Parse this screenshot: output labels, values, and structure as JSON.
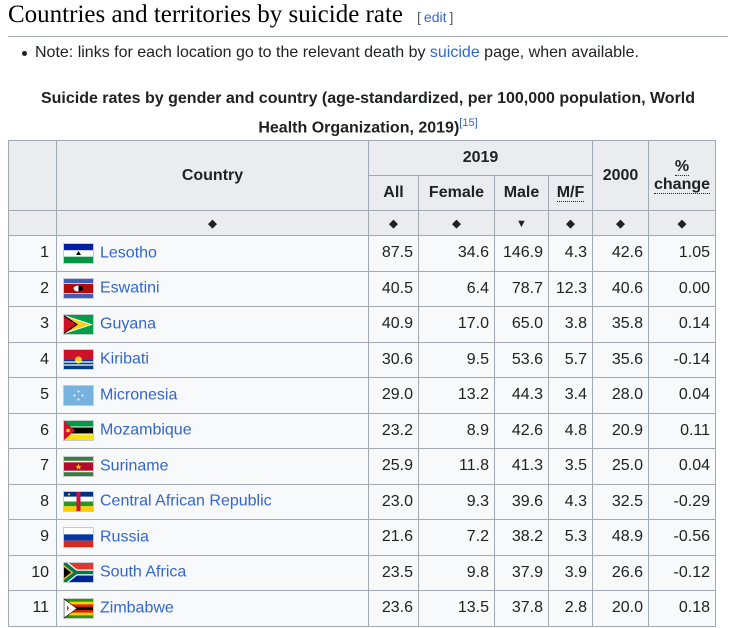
{
  "heading": {
    "title": "Countries and territories by suicide rate",
    "edit_label": "edit"
  },
  "note": {
    "prefix": "Note: links for each location go to the relevant death by ",
    "link": "suicide",
    "suffix": " page, when available."
  },
  "caption": {
    "line1": "Suicide rates by gender and country (age-standardized, per 100,000 population, World",
    "line2": "Health Organization, 2019)",
    "ref": "[15]"
  },
  "table": {
    "headers": {
      "country": "Country",
      "year_group": "2019",
      "all": "All",
      "female": "Female",
      "male": "Male",
      "mf": "M/F",
      "y2000": "2000",
      "change_pct": "%",
      "change_word": "change"
    },
    "sort_icons": {
      "both": "◆",
      "descending": "▼"
    },
    "rows": [
      {
        "rank": "1",
        "country": "Lesotho",
        "flag": "lesotho",
        "all": "87.5",
        "female": "34.6",
        "male": "146.9",
        "mf": "4.3",
        "y2000": "42.6",
        "change": "1.05"
      },
      {
        "rank": "2",
        "country": "Eswatini",
        "flag": "eswatini",
        "all": "40.5",
        "female": "6.4",
        "male": "78.7",
        "mf": "12.3",
        "y2000": "40.6",
        "change": "0.00"
      },
      {
        "rank": "3",
        "country": "Guyana",
        "flag": "guyana",
        "all": "40.9",
        "female": "17.0",
        "male": "65.0",
        "mf": "3.8",
        "y2000": "35.8",
        "change": "0.14"
      },
      {
        "rank": "4",
        "country": "Kiribati",
        "flag": "kiribati",
        "all": "30.6",
        "female": "9.5",
        "male": "53.6",
        "mf": "5.7",
        "y2000": "35.6",
        "change": "-0.14"
      },
      {
        "rank": "5",
        "country": "Micronesia",
        "flag": "micronesia",
        "all": "29.0",
        "female": "13.2",
        "male": "44.3",
        "mf": "3.4",
        "y2000": "28.0",
        "change": "0.04"
      },
      {
        "rank": "6",
        "country": "Mozambique",
        "flag": "mozambique",
        "all": "23.2",
        "female": "8.9",
        "male": "42.6",
        "mf": "4.8",
        "y2000": "20.9",
        "change": "0.11"
      },
      {
        "rank": "7",
        "country": "Suriname",
        "flag": "suriname",
        "all": "25.9",
        "female": "11.8",
        "male": "41.3",
        "mf": "3.5",
        "y2000": "25.0",
        "change": "0.04"
      },
      {
        "rank": "8",
        "country": "Central African Republic",
        "flag": "car",
        "all": "23.0",
        "female": "9.3",
        "male": "39.6",
        "mf": "4.3",
        "y2000": "32.5",
        "change": "-0.29"
      },
      {
        "rank": "9",
        "country": "Russia",
        "flag": "russia",
        "all": "21.6",
        "female": "7.2",
        "male": "38.2",
        "mf": "5.3",
        "y2000": "48.9",
        "change": "-0.56"
      },
      {
        "rank": "10",
        "country": "South Africa",
        "flag": "southafrica",
        "all": "23.5",
        "female": "9.8",
        "male": "37.9",
        "mf": "3.9",
        "y2000": "26.6",
        "change": "-0.12"
      },
      {
        "rank": "11",
        "country": "Zimbabwe",
        "flag": "zimbabwe",
        "all": "23.6",
        "female": "13.5",
        "male": "37.8",
        "mf": "2.8",
        "y2000": "20.0",
        "change": "0.18"
      }
    ]
  }
}
